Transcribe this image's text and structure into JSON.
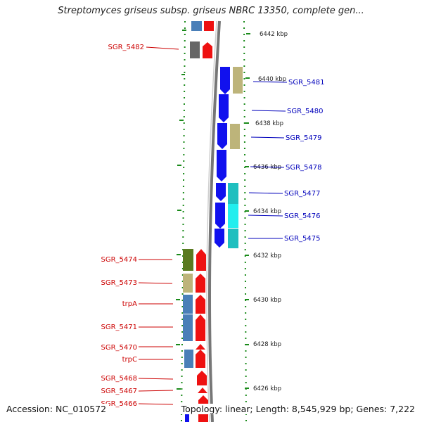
{
  "title": "Streptomyces griseus subsp. griseus NBRC 13350, complete gen...",
  "footer": {
    "accession": "Accession: NC_010572",
    "topology": "Topology: linear; Length: 8,545,929 bp; Genes: 7,222"
  },
  "colors": {
    "label_left": "#cc0000",
    "label_right": "#0000bb",
    "tick": "#1a8a1a",
    "axis_line": "#777777"
  },
  "scale": {
    "ticks": [
      "6442 kbp",
      "6440 kbp",
      "6438 kbp",
      "6436 kbp",
      "6434 kbp",
      "6432 kbp",
      "6430 kbp",
      "6428 kbp",
      "6426 kbp"
    ]
  },
  "genes_left": [
    {
      "name": "SGR_5482"
    },
    {
      "name": "SGR_5474"
    },
    {
      "name": "SGR_5473"
    },
    {
      "name": "trpA"
    },
    {
      "name": "SGR_5471"
    },
    {
      "name": "SGR_5470"
    },
    {
      "name": "trpC"
    },
    {
      "name": "SGR_5468"
    },
    {
      "name": "SGR_5467"
    },
    {
      "name": "SGR_5466"
    }
  ],
  "genes_right": [
    {
      "name": "SGR_5481"
    },
    {
      "name": "SGR_5480"
    },
    {
      "name": "SGR_5479"
    },
    {
      "name": "SGR_5478"
    },
    {
      "name": "SGR_5477"
    },
    {
      "name": "SGR_5476"
    },
    {
      "name": "SGR_5475"
    }
  ]
}
